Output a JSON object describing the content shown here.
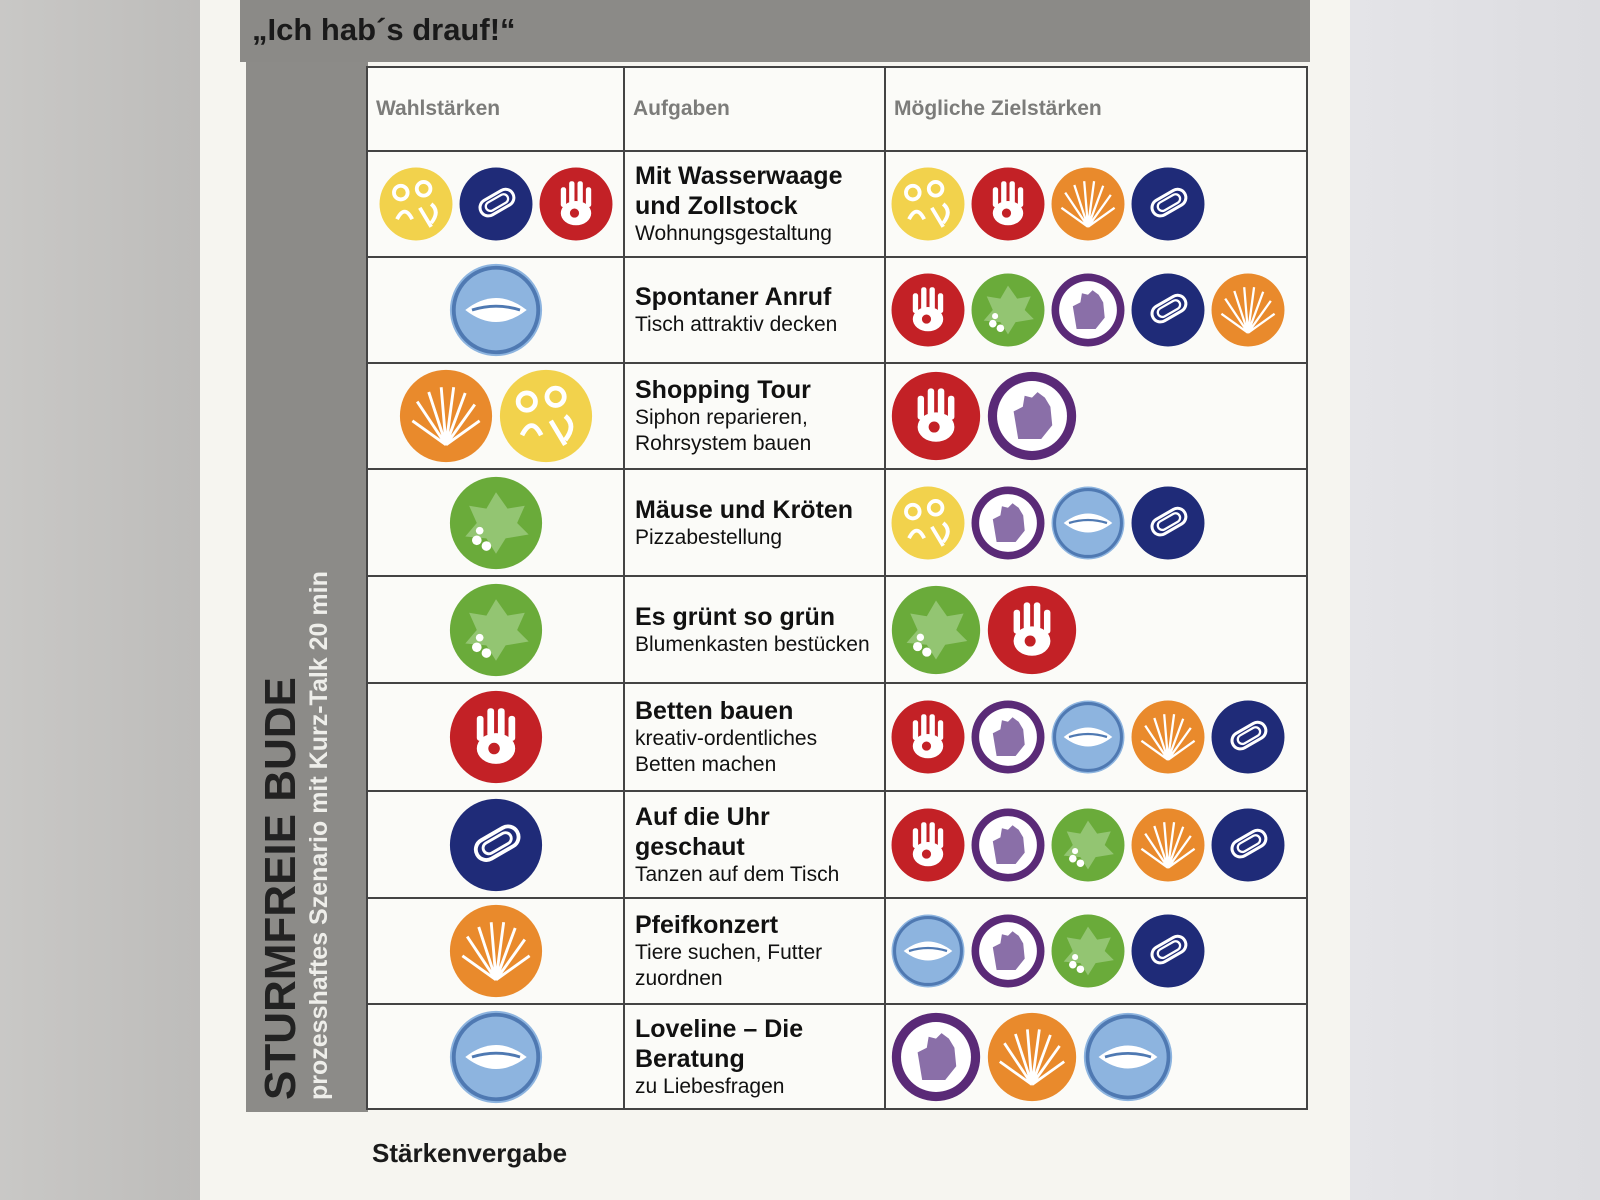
{
  "header": {
    "title": "„Ich hab´s drauf!“"
  },
  "side": {
    "title": "STURMFREIE BUDE",
    "subtitle": "prozesshaftes Szenario mit Kurz-Talk 20 min"
  },
  "table": {
    "columns": [
      "Wahlstärken",
      "Aufgaben",
      "Mögliche Zielstärken"
    ],
    "rows": [
      {
        "task": "Mit Wasserwaage und Zollstock",
        "description": "Wohnungsgestaltung"
      },
      {
        "task": "Spontaner Anruf",
        "description": "Tisch attraktiv decken"
      },
      {
        "task": "Shopping Tour",
        "description": "Siphon reparieren, Rohrsystem bauen"
      },
      {
        "task": "Mäuse und Kröten",
        "description": "Pizzabestellung"
      },
      {
        "task": "Es grünt so grün",
        "description": "Blumenkasten bestücken"
      },
      {
        "task": "Betten bauen",
        "description": "kreativ-ordentliches Betten machen"
      },
      {
        "task": "Auf die Uhr geschaut",
        "description": "Tanzen auf dem Tisch"
      },
      {
        "task": "Pfeifkonzert",
        "description": "Tiere suchen, Futter zuordnen"
      },
      {
        "task": "Loveline – Die Beratung",
        "description": "zu Liebesfragen"
      }
    ]
  },
  "footer": {
    "heading": "Stärkenvergabe"
  }
}
